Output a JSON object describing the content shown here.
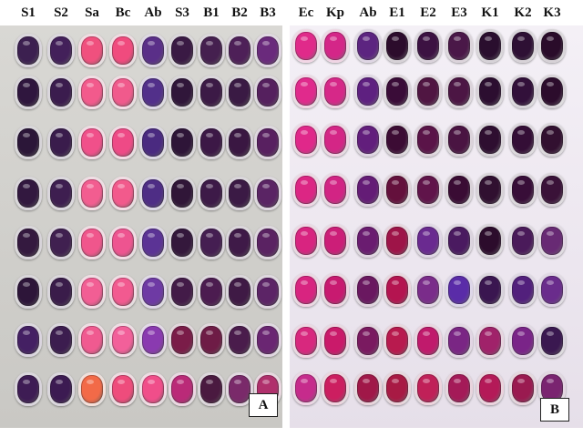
{
  "panels": [
    {
      "tag": "A",
      "columns": [
        "S1",
        "S2",
        "Sa",
        "Bc",
        "Ab",
        "S3",
        "B1",
        "B2",
        "B3"
      ],
      "well_colors": [
        [
          "#3c2050",
          "#43205a",
          "#f0507e",
          "#f04b7e",
          "#5a2f88",
          "#3a1a44",
          "#45204f",
          "#4e2058",
          "#6a2a7c"
        ],
        [
          "#2f163e",
          "#3b1c4e",
          "#f25a8c",
          "#f05a8c",
          "#52308a",
          "#30163a",
          "#3c1a46",
          "#3a1a44",
          "#55205e"
        ],
        [
          "#2b1638",
          "#3a1c4c",
          "#f0508a",
          "#ee4a86",
          "#4a2a80",
          "#2e1538",
          "#3c1846",
          "#3a1742",
          "#582060"
        ],
        [
          "#32183f",
          "#3e1e50",
          "#f25d90",
          "#f25a8c",
          "#4e2d85",
          "#301638",
          "#3d1a48",
          "#3b1a45",
          "#5a2464"
        ],
        [
          "#34193f",
          "#402050",
          "#f0568c",
          "#ee5490",
          "#5b3395",
          "#34183c",
          "#451e52",
          "#3f1a48",
          "#5a2262"
        ],
        [
          "#2d1539",
          "#3a1c4a",
          "#f25e94",
          "#f25a90",
          "#6e3aa4",
          "#431b48",
          "#4c1c50",
          "#3f1a45",
          "#5c2466"
        ],
        [
          "#442063",
          "#3c1d4f",
          "#f05a90",
          "#f2609a",
          "#8a3ab0",
          "#7a1c48",
          "#6e1c46",
          "#4a1c4c",
          "#6a2672"
        ],
        [
          "#3e1c54",
          "#3c1b52",
          "#f26a48",
          "#ee4c7c",
          "#f04e8a",
          "#ba2a78",
          "#4a1a40",
          "#7a2a6a",
          "#b0306c"
        ]
      ]
    },
    {
      "tag": "B",
      "columns": [
        "Ec",
        "Kp",
        "Ab",
        "E1",
        "E2",
        "E3",
        "K1",
        "K2",
        "K3"
      ],
      "well_colors": [
        [
          "#e02a8a",
          "#d42688",
          "#5c2480",
          "#2c0c2c",
          "#3c1242",
          "#4a1848",
          "#2a0e2e",
          "#2e1034",
          "#2a0c2a"
        ],
        [
          "#e02a8c",
          "#d62888",
          "#5e2080",
          "#3a0c38",
          "#501642",
          "#4c1644",
          "#2c0e30",
          "#32103a",
          "#2c0c2c"
        ],
        [
          "#e0288a",
          "#d42686",
          "#621e7c",
          "#3c0c34",
          "#5a1448",
          "#4a1442",
          "#2e0e30",
          "#340e36",
          "#321030"
        ],
        [
          "#dc2684",
          "#d22484",
          "#641c76",
          "#64103c",
          "#60144a",
          "#3a0c34",
          "#301030",
          "#380e38",
          "#3a1238"
        ],
        [
          "#d82480",
          "#cc1e78",
          "#6a1c70",
          "#9e1448",
          "#6a2a90",
          "#4a1a60",
          "#2c0c2c",
          "#4a1a5a",
          "#682a74"
        ],
        [
          "#d82480",
          "#c81a70",
          "#6a1860",
          "#b41450",
          "#7a2c8a",
          "#5a2ca8",
          "#3a1650",
          "#52207c",
          "#6a2c8c"
        ],
        [
          "#d8287e",
          "#ca1a6a",
          "#7a1a60",
          "#b81a4e",
          "#c01a6c",
          "#7a2684",
          "#a0226a",
          "#7a2488",
          "#3a1850"
        ],
        [
          "#c62b8c",
          "#cc1e60",
          "#a01848",
          "#a81a44",
          "#c02058",
          "#a41a58",
          "#b41a58",
          "#9a1a50",
          "#7a2470"
        ]
      ]
    }
  ]
}
